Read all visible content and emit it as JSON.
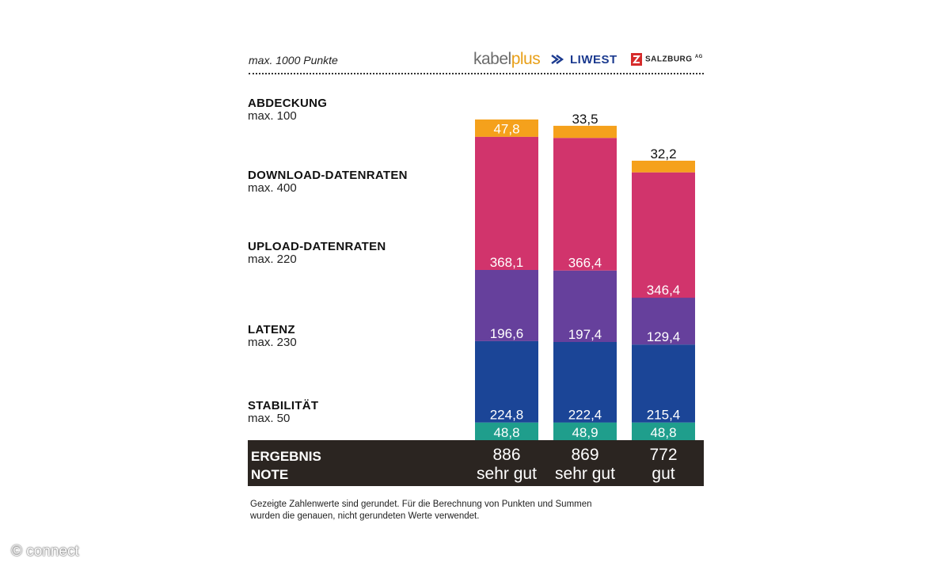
{
  "header": {
    "max_points": "max. 1000 Punkte",
    "providers": [
      {
        "name": "kabelplus",
        "part1": "kabel",
        "part2": "plus"
      },
      {
        "name": "LIWEST"
      },
      {
        "name": "SALZBURG",
        "suffix": "AG"
      }
    ]
  },
  "categories": [
    {
      "name": "ABDECKUNG",
      "max": "max. 100"
    },
    {
      "name": "DOWNLOAD-DATENRATEN",
      "max": "max. 400"
    },
    {
      "name": "UPLOAD-DATENRATEN",
      "max": "max. 220"
    },
    {
      "name": "LATENZ",
      "max": "max. 230"
    },
    {
      "name": "STABILITÄT",
      "max": "max. 50"
    }
  ],
  "chart_data": {
    "type": "bar",
    "stacked": true,
    "categories": [
      "kabelplus",
      "LIWEST",
      "SALZBURG AG"
    ],
    "series": [
      {
        "name": "STABILITÄT",
        "values": [
          48.8,
          48.9,
          48.8
        ],
        "labels": [
          "48,8",
          "48,9",
          "48,8"
        ],
        "color": "#1f9e8c"
      },
      {
        "name": "LATENZ",
        "values": [
          224.8,
          222.4,
          215.4
        ],
        "labels": [
          "224,8",
          "222,4",
          "215,4"
        ],
        "color": "#1b4597"
      },
      {
        "name": "UPLOAD-DATENRATEN",
        "values": [
          196.6,
          197.4,
          129.4
        ],
        "labels": [
          "196,6",
          "197,4",
          "129,4"
        ],
        "color": "#66409c"
      },
      {
        "name": "DOWNLOAD-DATENRATEN",
        "values": [
          368.1,
          366.4,
          346.4
        ],
        "labels": [
          "368,1",
          "366,4",
          "346,4"
        ],
        "color": "#d1346c"
      },
      {
        "name": "ABDECKUNG",
        "values": [
          47.8,
          33.5,
          32.2
        ],
        "labels": [
          "47,8",
          "33,5",
          "32,2"
        ],
        "color": "#f5a11c"
      }
    ],
    "ylim": [
      0,
      1000
    ]
  },
  "results": {
    "label_result": "ERGEBNIS",
    "label_grade": "NOTE",
    "totals": [
      "886",
      "869",
      "772"
    ],
    "grades": [
      "sehr gut",
      "sehr gut",
      "gut"
    ]
  },
  "footnote": "Gezeigte Zahlenwerte sind gerundet. Für die Berechnung von Punkten und Summen wurden die genauen, nicht gerundeten Werte verwendet.",
  "copyright": "© connect"
}
